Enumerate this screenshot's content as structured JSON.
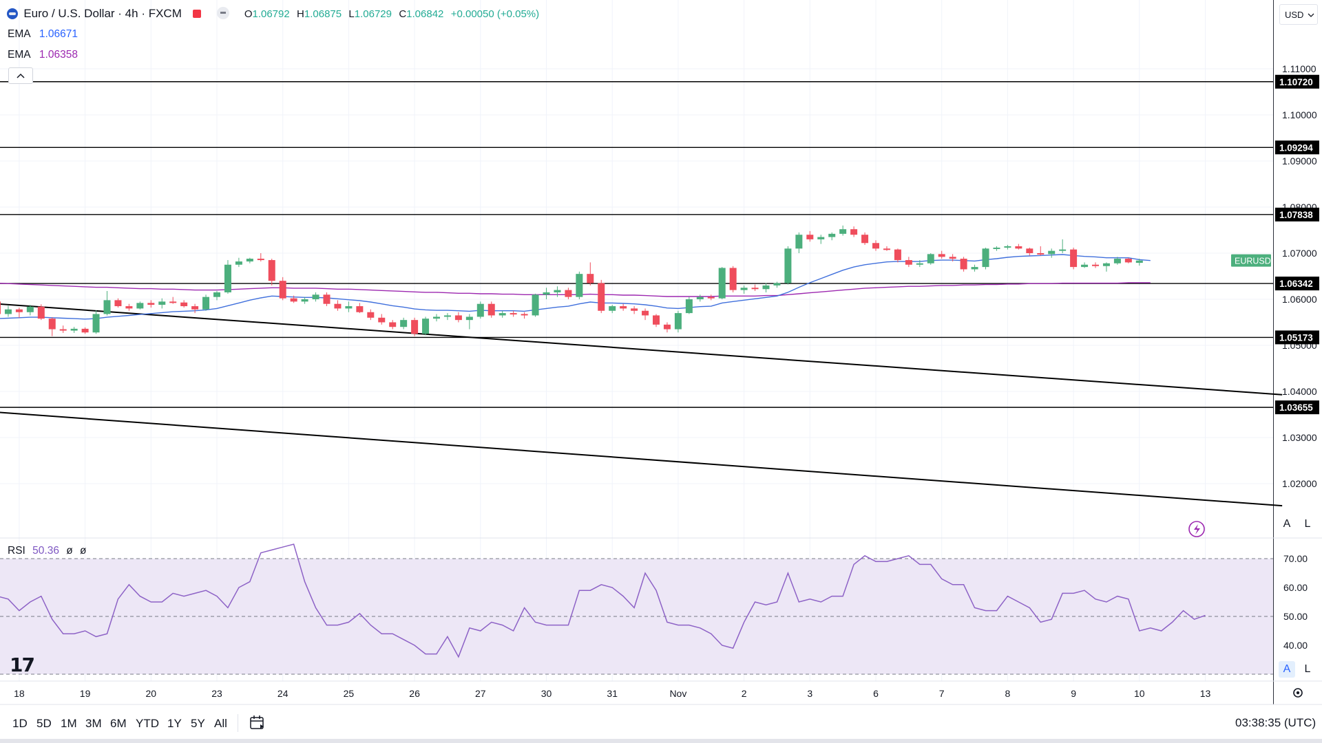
{
  "header": {
    "title": "Euro / U.S. Dollar · 4h · FXCM",
    "open_label": "O",
    "open": "1.06792",
    "high_label": "H",
    "high": "1.06875",
    "low_label": "L",
    "low": "1.06729",
    "close_label": "C",
    "close": "1.06842",
    "change": "+0.00050 (+0.05%)",
    "currency": "USD"
  },
  "indicators": [
    {
      "name": "EMA",
      "value": "1.06671",
      "color": "#2962ff"
    },
    {
      "name": "EMA",
      "value": "1.06358",
      "color": "#9c27b0"
    }
  ],
  "rsi_legend": {
    "name": "RSI",
    "value": "50.36",
    "extra1": "ø",
    "extra2": "ø"
  },
  "symbol_tag": "EURUSD",
  "axis_buttons": {
    "auto": "A",
    "log": "L"
  },
  "timeframes": [
    "1D",
    "5D",
    "1M",
    "3M",
    "6M",
    "YTD",
    "1Y",
    "5Y",
    "All"
  ],
  "clock": "03:38:35 (UTC)",
  "logo": "17",
  "colors": {
    "up": "#4caf7d",
    "down": "#ef4d5c",
    "ema_fast": "#3f6fdc",
    "ema_slow": "#9c27b0",
    "rsi": "#8d62c6",
    "rsi_band": "#ede7f6",
    "grid": "#f0f3fa",
    "line": "#000000"
  },
  "chart_data": [
    {
      "type": "candlestick",
      "title": "Euro / U.S. Dollar · 4h · FXCM",
      "ylim": [
        1.01,
        1.12
      ],
      "y_ticks": [
        "1.11000",
        "1.10000",
        "1.09000",
        "1.08000",
        "1.07000",
        "1.06000",
        "1.05000",
        "1.04000",
        "1.03000",
        "1.02000"
      ],
      "x_tick_labels": [
        "18",
        "19",
        "20",
        "23",
        "24",
        "25",
        "26",
        "27",
        "30",
        "31",
        "Nov",
        "2",
        "3",
        "6",
        "7",
        "8",
        "9",
        "10",
        "13"
      ],
      "x_tick_index": [
        2,
        8,
        14,
        20,
        26,
        32,
        38,
        44,
        50,
        56,
        62,
        68,
        74,
        80,
        86,
        92,
        98,
        104,
        110
      ],
      "candles": [
        [
          1.0595,
          1.0598,
          1.056,
          1.0568
        ],
        [
          1.0568,
          1.0586,
          1.0562,
          1.0578
        ],
        [
          1.0578,
          1.0582,
          1.056,
          1.0572
        ],
        [
          1.0572,
          1.0588,
          1.0565,
          1.0584
        ],
        [
          1.0584,
          1.0589,
          1.0555,
          1.0558
        ],
        [
          1.0558,
          1.0561,
          1.052,
          1.0535
        ],
        [
          1.0535,
          1.0543,
          1.0527,
          1.0532
        ],
        [
          1.0532,
          1.054,
          1.0527,
          1.0536
        ],
        [
          1.0536,
          1.0539,
          1.0525,
          1.0528
        ],
        [
          1.0528,
          1.0576,
          1.0525,
          1.0568
        ],
        [
          1.0568,
          1.0618,
          1.0565,
          1.0598
        ],
        [
          1.0598,
          1.0602,
          1.0582,
          1.0585
        ],
        [
          1.0585,
          1.059,
          1.0575,
          1.058
        ],
        [
          1.058,
          1.0595,
          1.0578,
          1.0592
        ],
        [
          1.0592,
          1.0598,
          1.0582,
          1.0588
        ],
        [
          1.0588,
          1.0602,
          1.058,
          1.0595
        ],
        [
          1.0595,
          1.0605,
          1.059,
          1.0593
        ],
        [
          1.0593,
          1.0598,
          1.0582,
          1.0585
        ],
        [
          1.0585,
          1.059,
          1.057,
          1.0578
        ],
        [
          1.0578,
          1.061,
          1.0575,
          1.0605
        ],
        [
          1.0605,
          1.0618,
          1.0598,
          1.0615
        ],
        [
          1.0615,
          1.0685,
          1.0612,
          1.0675
        ],
        [
          1.0675,
          1.069,
          1.067,
          1.0682
        ],
        [
          1.0682,
          1.069,
          1.0678,
          1.0688
        ],
        [
          1.0688,
          1.07,
          1.0682,
          1.0685
        ],
        [
          1.0685,
          1.0688,
          1.063,
          1.064
        ],
        [
          1.064,
          1.0648,
          1.0598,
          1.0602
        ],
        [
          1.0602,
          1.0608,
          1.0592,
          1.0595
        ],
        [
          1.0595,
          1.0605,
          1.059,
          1.06
        ],
        [
          1.06,
          1.0615,
          1.0595,
          1.061
        ],
        [
          1.061,
          1.0615,
          1.0585,
          1.059
        ],
        [
          1.059,
          1.0598,
          1.0575,
          1.058
        ],
        [
          1.058,
          1.0595,
          1.0572,
          1.0585
        ],
        [
          1.0585,
          1.0592,
          1.057,
          1.0572
        ],
        [
          1.0572,
          1.0578,
          1.0555,
          1.056
        ],
        [
          1.056,
          1.0568,
          1.0545,
          1.055
        ],
        [
          1.055,
          1.0555,
          1.0535,
          1.054
        ],
        [
          1.054,
          1.056,
          1.0535,
          1.0555
        ],
        [
          1.0555,
          1.056,
          1.052,
          1.0525
        ],
        [
          1.0525,
          1.0562,
          1.0522,
          1.0558
        ],
        [
          1.0558,
          1.0568,
          1.0552,
          1.0562
        ],
        [
          1.0562,
          1.057,
          1.0555,
          1.0565
        ],
        [
          1.0565,
          1.0572,
          1.055,
          1.0555
        ],
        [
          1.0555,
          1.0568,
          1.0535,
          1.0562
        ],
        [
          1.0562,
          1.0595,
          1.0558,
          1.059
        ],
        [
          1.059,
          1.0595,
          1.056,
          1.0565
        ],
        [
          1.0565,
          1.0575,
          1.056,
          1.057
        ],
        [
          1.057,
          1.0575,
          1.0562,
          1.0568
        ],
        [
          1.0568,
          1.0572,
          1.0558,
          1.0565
        ],
        [
          1.0565,
          1.0612,
          1.0562,
          1.061
        ],
        [
          1.061,
          1.0625,
          1.06,
          1.0615
        ],
        [
          1.0615,
          1.0628,
          1.0605,
          1.062
        ],
        [
          1.062,
          1.0625,
          1.06,
          1.0605
        ],
        [
          1.0605,
          1.066,
          1.06,
          1.0655
        ],
        [
          1.0655,
          1.068,
          1.063,
          1.0635
        ],
        [
          1.0635,
          1.0642,
          1.057,
          1.0575
        ],
        [
          1.0575,
          1.0588,
          1.057,
          1.0585
        ],
        [
          1.0585,
          1.059,
          1.0575,
          1.058
        ],
        [
          1.058,
          1.0585,
          1.0568,
          1.0575
        ],
        [
          1.0575,
          1.058,
          1.0555,
          1.0565
        ],
        [
          1.0565,
          1.0568,
          1.054,
          1.0545
        ],
        [
          1.0545,
          1.055,
          1.0528,
          1.0535
        ],
        [
          1.0535,
          1.0575,
          1.0528,
          1.057
        ],
        [
          1.057,
          1.0605,
          1.0568,
          1.06
        ],
        [
          1.06,
          1.061,
          1.0595,
          1.0605
        ],
        [
          1.0605,
          1.061,
          1.0598,
          1.0602
        ],
        [
          1.0602,
          1.067,
          1.06,
          1.0668
        ],
        [
          1.0668,
          1.0672,
          1.0615,
          1.062
        ],
        [
          1.062,
          1.063,
          1.0612,
          1.0625
        ],
        [
          1.0625,
          1.0632,
          1.0618,
          1.0622
        ],
        [
          1.0622,
          1.0635,
          1.0615,
          1.063
        ],
        [
          1.063,
          1.0638,
          1.0625,
          1.0635
        ],
        [
          1.0635,
          1.0715,
          1.0632,
          1.071
        ],
        [
          1.071,
          1.0745,
          1.07,
          1.074
        ],
        [
          1.074,
          1.0748,
          1.0725,
          1.073
        ],
        [
          1.073,
          1.074,
          1.072,
          1.0735
        ],
        [
          1.0735,
          1.0745,
          1.0728,
          1.0742
        ],
        [
          1.0742,
          1.076,
          1.0738,
          1.0752
        ],
        [
          1.0752,
          1.0758,
          1.0735,
          1.074
        ],
        [
          1.074,
          1.0745,
          1.0718,
          1.0722
        ],
        [
          1.0722,
          1.0728,
          1.0705,
          1.071
        ],
        [
          1.071,
          1.0715,
          1.0705,
          1.0708
        ],
        [
          1.0708,
          1.071,
          1.068,
          1.0685
        ],
        [
          1.0685,
          1.0692,
          1.067,
          1.0675
        ],
        [
          1.0675,
          1.0685,
          1.067,
          1.0678
        ],
        [
          1.0678,
          1.07,
          1.0675,
          1.0698
        ],
        [
          1.0698,
          1.0705,
          1.0688,
          1.0692
        ],
        [
          1.0692,
          1.0698,
          1.0682,
          1.0688
        ],
        [
          1.0688,
          1.0692,
          1.066,
          1.0665
        ],
        [
          1.0665,
          1.0675,
          1.066,
          1.067
        ],
        [
          1.067,
          1.0712,
          1.0665,
          1.071
        ],
        [
          1.071,
          1.0715,
          1.0705,
          1.0712
        ],
        [
          1.0712,
          1.0718,
          1.0708,
          1.0715
        ],
        [
          1.0715,
          1.072,
          1.0708,
          1.071
        ],
        [
          1.071,
          1.0712,
          1.0695,
          1.07
        ],
        [
          1.07,
          1.0715,
          1.0695,
          1.0698
        ],
        [
          1.0698,
          1.071,
          1.069,
          1.0705
        ],
        [
          1.0705,
          1.073,
          1.07,
          1.0708
        ],
        [
          1.0708,
          1.0712,
          1.0665,
          1.067
        ],
        [
          1.067,
          1.068,
          1.0668,
          1.0675
        ],
        [
          1.0675,
          1.068,
          1.0668,
          1.0672
        ],
        [
          1.0672,
          1.068,
          1.066,
          1.0678
        ],
        [
          1.0678,
          1.0692,
          1.0675,
          1.0688
        ],
        [
          1.0688,
          1.069,
          1.0678,
          1.068
        ],
        [
          1.0679,
          1.0688,
          1.0673,
          1.0684
        ]
      ],
      "ema_fast": [
        1.0558,
        1.0559,
        1.056,
        1.0561,
        1.0561,
        1.056,
        1.0559,
        1.0558,
        1.0557,
        1.0558,
        1.0561,
        1.0563,
        1.0565,
        1.0567,
        1.0569,
        1.0571,
        1.0573,
        1.0574,
        1.0575,
        1.0577,
        1.058,
        1.0586,
        1.0592,
        1.0598,
        1.0603,
        1.0607,
        1.0606,
        1.0605,
        1.0604,
        1.0604,
        1.0603,
        1.0601,
        1.0599,
        1.0597,
        1.0594,
        1.059,
        1.0586,
        1.0583,
        1.0579,
        1.0577,
        1.0576,
        1.0576,
        1.0575,
        1.0574,
        1.0576,
        1.0575,
        1.0575,
        1.0575,
        1.0574,
        1.0577,
        1.058,
        1.0583,
        1.0585,
        1.059,
        1.0594,
        1.0592,
        1.0592,
        1.0591,
        1.059,
        1.0588,
        1.0585,
        1.0581,
        1.058,
        1.0582,
        1.0584,
        1.0585,
        1.0592,
        1.0595,
        1.0598,
        1.0601,
        1.0604,
        1.0607,
        1.0615,
        1.0626,
        1.0636,
        1.0645,
        1.0654,
        1.0663,
        1.067,
        1.0675,
        1.0678,
        1.0681,
        1.0682,
        1.0682,
        1.0682,
        1.0684,
        1.0685,
        1.0685,
        1.0684,
        1.0683,
        1.0686,
        1.0688,
        1.0691,
        1.0693,
        1.0694,
        1.0695,
        1.0696,
        1.0697,
        1.0695,
        1.0693,
        1.0692,
        1.069,
        1.069,
        1.069,
        1.0686,
        1.0684
      ],
      "ema_slow": [
        1.0635,
        1.0634,
        1.0633,
        1.0632,
        1.0631,
        1.063,
        1.0629,
        1.0628,
        1.0627,
        1.0626,
        1.0626,
        1.0625,
        1.0624,
        1.0623,
        1.0623,
        1.0622,
        1.0622,
        1.0621,
        1.062,
        1.062,
        1.062,
        1.0621,
        1.0622,
        1.0623,
        1.0624,
        1.0625,
        1.0625,
        1.0624,
        1.0624,
        1.0624,
        1.0623,
        1.0622,
        1.0622,
        1.0621,
        1.062,
        1.0619,
        1.0618,
        1.0617,
        1.0616,
        1.0615,
        1.0615,
        1.0614,
        1.0613,
        1.0613,
        1.0612,
        1.0612,
        1.0611,
        1.0611,
        1.061,
        1.061,
        1.061,
        1.061,
        1.061,
        1.061,
        1.0611,
        1.061,
        1.061,
        1.0609,
        1.0609,
        1.0608,
        1.0607,
        1.0606,
        1.0606,
        1.0606,
        1.0606,
        1.0606,
        1.0607,
        1.0607,
        1.0607,
        1.0607,
        1.0608,
        1.0608,
        1.061,
        1.0612,
        1.0614,
        1.0616,
        1.0618,
        1.062,
        1.0622,
        1.0624,
        1.0625,
        1.0626,
        1.0627,
        1.0628,
        1.0628,
        1.0629,
        1.063,
        1.063,
        1.0631,
        1.0631,
        1.0632,
        1.0632,
        1.0633,
        1.0633,
        1.0634,
        1.0634,
        1.0634,
        1.0635,
        1.0635,
        1.0635,
        1.0635,
        1.0635,
        1.0635,
        1.0636,
        1.0636,
        1.0636
      ],
      "horizontal_levels": [
        {
          "value": 1.1072,
          "label": "1.10720"
        },
        {
          "value": 1.09294,
          "label": "1.09294"
        },
        {
          "value": 1.07838,
          "label": "1.07838"
        },
        {
          "value": 1.06342,
          "label": "1.06342"
        },
        {
          "value": 1.05173,
          "label": "1.05173"
        },
        {
          "value": 1.03655,
          "label": "1.03655"
        }
      ],
      "trend_lines": [
        {
          "from": [
            0,
            1.059
          ],
          "to": [
            117,
            1.0393
          ]
        },
        {
          "from": [
            0,
            1.0355
          ],
          "to": [
            117,
            1.0152
          ]
        }
      ],
      "last_price": 1.06842
    },
    {
      "type": "line",
      "title": "RSI",
      "ylim": [
        30,
        77
      ],
      "y_ticks": [
        "70.00",
        "60.00",
        "50.00",
        "40.00"
      ],
      "bands": [
        70,
        50,
        30
      ],
      "values": [
        57,
        56,
        52,
        55,
        57,
        49,
        44,
        44,
        45,
        43,
        44,
        56,
        61,
        57,
        55,
        55,
        58,
        57,
        58,
        59,
        57,
        53,
        60,
        62,
        72,
        73,
        74,
        75,
        62,
        53,
        47,
        47,
        48,
        51,
        47,
        44,
        44,
        42,
        40,
        37,
        37,
        43,
        36,
        46,
        45,
        48,
        47,
        45,
        53,
        48,
        47,
        47,
        47,
        59,
        59,
        61,
        60,
        57,
        53,
        65,
        59,
        48,
        47,
        47,
        46,
        44,
        40,
        39,
        48,
        55,
        54,
        55,
        65,
        55,
        56,
        55,
        57,
        57,
        68,
        71,
        69,
        69,
        70,
        71,
        68,
        68,
        63,
        61,
        61,
        53,
        52,
        52,
        57,
        55,
        53,
        48,
        49,
        58,
        58,
        59,
        56,
        55,
        57,
        56,
        45,
        46,
        45,
        48,
        52,
        49,
        50.36
      ]
    }
  ]
}
